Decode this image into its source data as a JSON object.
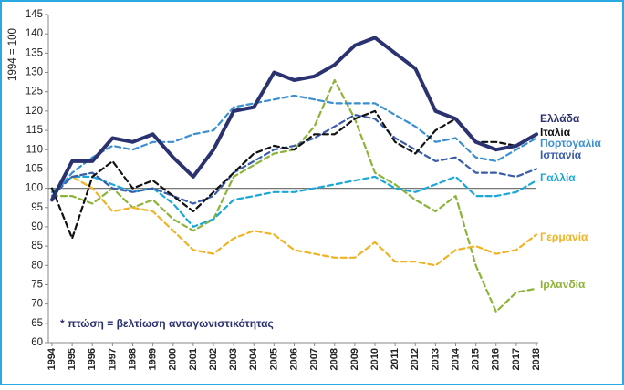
{
  "chart_data": {
    "type": "line",
    "y_label": "1994 = 100",
    "annotation": "* πτώση = βελτίωση ανταγωνιστικότητας",
    "categories": [
      "1994",
      "1995",
      "1996",
      "1997",
      "1998",
      "1999",
      "2000",
      "2001",
      "2002",
      "2003",
      "2004",
      "2005",
      "2006",
      "2007",
      "2008",
      "2009",
      "2010",
      "2011",
      "2012",
      "2013",
      "2014",
      "2015",
      "2016",
      "2017",
      "2018"
    ],
    "ylim": [
      60,
      145
    ],
    "yticks": [
      60,
      65,
      70,
      75,
      80,
      85,
      90,
      95,
      100,
      105,
      110,
      115,
      120,
      125,
      130,
      135,
      140,
      145
    ],
    "reference_line": 100,
    "grid": false,
    "series": [
      {
        "name": "Ελλάδα",
        "color": "#2b3270",
        "width": 4,
        "dashed": false,
        "values": [
          97,
          107,
          107,
          113,
          112,
          114,
          108,
          103,
          110,
          120,
          121,
          130,
          128,
          129,
          132,
          137,
          139,
          135,
          131,
          120,
          118,
          112,
          110,
          111,
          114
        ]
      },
      {
        "name": "Ιταλία",
        "color": "#111111",
        "width": 2.2,
        "dashed": true,
        "values": [
          100,
          87,
          103,
          107,
          100,
          102,
          98,
          94,
          99,
          104,
          109,
          111,
          110,
          114,
          114,
          118,
          120,
          112,
          109,
          115,
          118,
          112,
          112,
          111,
          114
        ]
      },
      {
        "name": "Πορτογαλία",
        "color": "#3a8fd1",
        "width": 2.2,
        "dashed": true,
        "values": [
          98,
          104,
          108,
          111,
          110,
          112,
          112,
          114,
          115,
          121,
          122,
          123,
          124,
          123,
          122,
          122,
          122,
          119,
          116,
          112,
          113,
          108,
          107,
          110,
          113
        ]
      },
      {
        "name": "Ισπανία",
        "color": "#3b5ca8",
        "width": 2.2,
        "dashed": true,
        "values": [
          98,
          103,
          104,
          100,
          99,
          100,
          98,
          96,
          98,
          104,
          107,
          110,
          111,
          113,
          116,
          119,
          118,
          113,
          110,
          107,
          108,
          104,
          104,
          103,
          105
        ]
      },
      {
        "name": "Γαλλία",
        "color": "#1aa8d8",
        "width": 2.2,
        "dashed": true,
        "values": [
          99,
          103,
          103,
          101,
          99,
          100,
          96,
          90,
          92,
          97,
          98,
          99,
          99,
          100,
          101,
          102,
          103,
          100,
          99,
          101,
          103,
          98,
          98,
          99,
          102
        ]
      },
      {
        "name": "Γερμανία",
        "color": "#f0b323",
        "width": 2.2,
        "dashed": true,
        "values": [
          99,
          103,
          100,
          94,
          95,
          94,
          89,
          84,
          83,
          87,
          89,
          88,
          84,
          83,
          82,
          82,
          86,
          81,
          81,
          80,
          84,
          85,
          83,
          84,
          88
        ]
      },
      {
        "name": "Ιρλανδία",
        "color": "#8db33a",
        "width": 2.2,
        "dashed": true,
        "values": [
          98,
          98,
          96,
          100,
          95,
          97,
          92,
          89,
          92,
          103,
          106,
          109,
          110,
          116,
          128,
          118,
          104,
          101,
          97,
          94,
          98,
          80,
          68,
          73,
          74
        ]
      }
    ]
  }
}
